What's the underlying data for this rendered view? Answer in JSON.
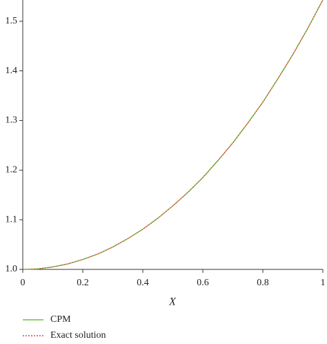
{
  "chart_data": {
    "type": "line",
    "x_label": "X",
    "x": [
      0,
      0.05,
      0.1,
      0.15,
      0.2,
      0.25,
      0.3,
      0.35,
      0.4,
      0.45,
      0.5,
      0.55,
      0.6,
      0.65,
      0.7,
      0.75,
      0.8,
      0.85,
      0.9,
      0.95,
      1
    ],
    "series": [
      {
        "name": "CPM",
        "color": "#6cbf3c",
        "style": "solid",
        "values": [
          1,
          1.001,
          1.005,
          1.011,
          1.02,
          1.031,
          1.045,
          1.062,
          1.081,
          1.103,
          1.128,
          1.155,
          1.185,
          1.219,
          1.255,
          1.295,
          1.337,
          1.384,
          1.433,
          1.486,
          1.543
        ]
      },
      {
        "name": "Exact solution",
        "color": "#e0433a",
        "style": "dotted",
        "values": [
          1,
          1.001,
          1.005,
          1.011,
          1.02,
          1.031,
          1.045,
          1.062,
          1.081,
          1.103,
          1.128,
          1.155,
          1.185,
          1.219,
          1.255,
          1.295,
          1.337,
          1.384,
          1.433,
          1.486,
          1.543
        ]
      }
    ],
    "xlim": [
      0,
      1
    ],
    "ylim": [
      1,
      1.54
    ],
    "xticks": [
      0,
      0.2,
      0.4,
      0.6,
      0.8,
      1
    ],
    "yticks": [
      {
        "value": 1,
        "label": "1.0"
      },
      1.1,
      1.2,
      1.3,
      1.4,
      1.5
    ],
    "legend": "bottom-left"
  }
}
